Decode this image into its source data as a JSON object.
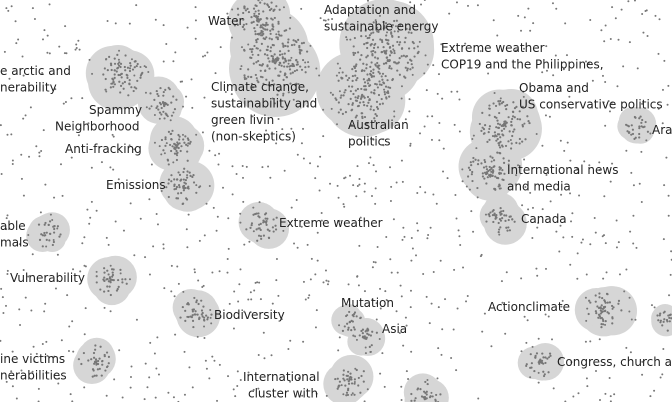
{
  "labels": [
    {
      "lines": [
        "e arctic and",
        "nerability"
      ]
    },
    {
      "lines": [
        "Spammy",
        "Neighborhood"
      ]
    },
    {
      "lines": [
        "Anti-fracking"
      ]
    },
    {
      "lines": [
        "Emissions"
      ]
    },
    {
      "lines": [
        "able",
        "mals"
      ]
    },
    {
      "lines": [
        "Vulnerability"
      ]
    },
    {
      "lines": [
        "ine victims",
        "nerabilities"
      ]
    },
    {
      "lines": [
        "Water"
      ]
    },
    {
      "lines": [
        "Adaptation and",
        "sustainable energy"
      ]
    },
    {
      "lines": [
        "Climate change,",
        "sustainability and",
        "green livin",
        "(non-skeptics)"
      ]
    },
    {
      "lines": [
        "Australian",
        "politics"
      ]
    },
    {
      "lines": [
        "Extreme weather",
        "COP19 and the Philippines,"
      ]
    },
    {
      "lines": [
        "Obama and",
        "US conservative politics"
      ]
    },
    {
      "lines": [
        "Ara"
      ]
    },
    {
      "lines": [
        "International news",
        "and media"
      ]
    },
    {
      "lines": [
        "Canada"
      ]
    },
    {
      "lines": [
        "Extreme weather"
      ]
    },
    {
      "lines": [
        "Biodiversity"
      ]
    },
    {
      "lines": [
        "Mutation"
      ]
    },
    {
      "lines": [
        "Asia"
      ]
    },
    {
      "lines": [
        "Actionclimate"
      ]
    },
    {
      "lines": [
        "Congress, church ar"
      ]
    },
    {
      "lines": [
        "International",
        "cluster with"
      ]
    }
  ]
}
